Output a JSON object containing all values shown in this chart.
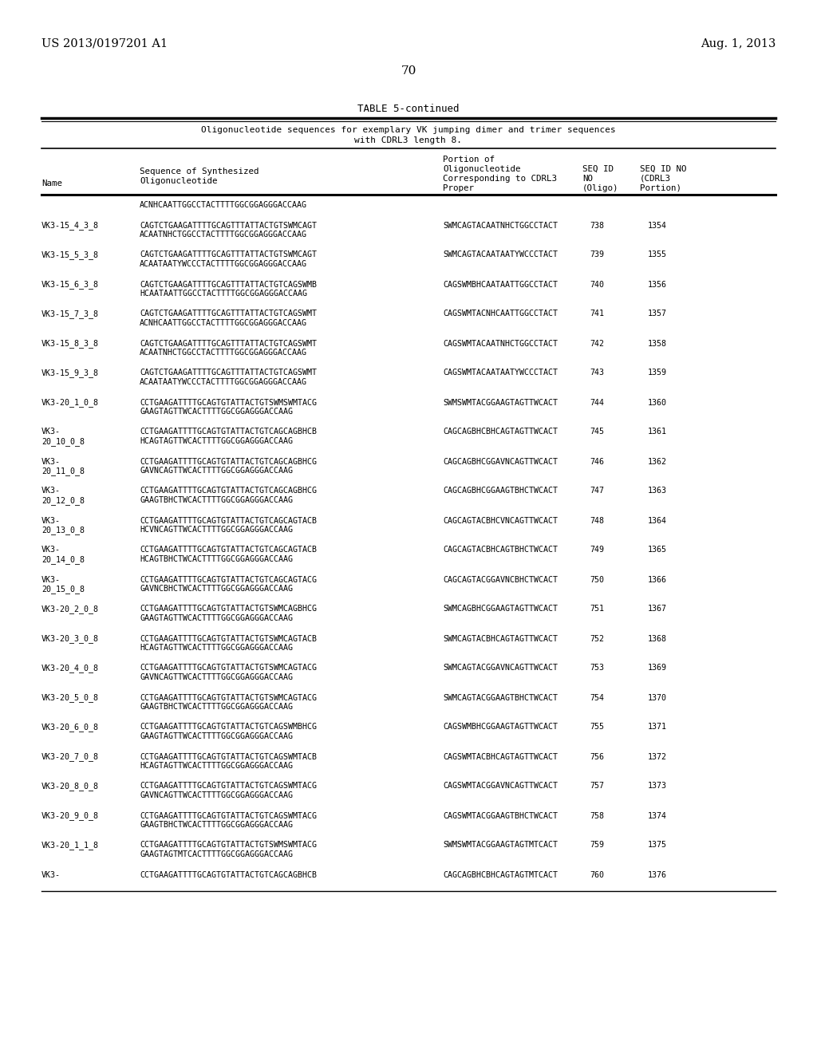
{
  "header_left": "US 2013/0197201 A1",
  "header_right": "Aug. 1, 2013",
  "page_number": "70",
  "table_title": "TABLE 5-continued",
  "table_subtitle1": "Oligonucleotide sequences for exemplary VK jumping dimer and trimer sequences",
  "table_subtitle2": "with CDRL3 length 8.",
  "bg_color": "#ffffff",
  "text_color": "#000000",
  "entries": [
    {
      "name": "",
      "seq1": "ACNHCAATTGGCCTACTTTTGGCGGAGGGACCAAG",
      "seq2": "",
      "portion": "",
      "num1": "",
      "num2": ""
    },
    {
      "name": "VK3-15_4_3_8",
      "seq1": "CAGTCTGAAGATTTTGCAGTTTATTACTGTSWMCAGT",
      "seq2": "ACAATNHCTGGCCTACTTTTGGCGGAGGGACCAAG",
      "portion": "SWMCAGTACAATNHCTGGCCTACT",
      "num1": "738",
      "num2": "1354"
    },
    {
      "name": "VK3-15_5_3_8",
      "seq1": "CAGTCTGAAGATTTTGCAGTTTATTACTGTSWMCAGT",
      "seq2": "ACAATAATYWCCCTACTTTTGGCGGAGGGACCAAG",
      "portion": "SWMCAGTACAATAATYWCCCTACT",
      "num1": "739",
      "num2": "1355"
    },
    {
      "name": "VK3-15_6_3_8",
      "seq1": "CAGTCTGAAGATTTTGCAGTTTATTACTGTCAGSWMB",
      "seq2": "HCAATAATTGGCCTACTTTTGGCGGAGGGACCAAG",
      "portion": "CAGSWMBHCAATAATTGGCCTACT",
      "num1": "740",
      "num2": "1356"
    },
    {
      "name": "VK3-15_7_3_8",
      "seq1": "CAGTCTGAAGATTTTGCAGTTTATTACTGTCAGSWMT",
      "seq2": "ACNHCAATTGGCCTACTTTTGGCGGAGGGACCAAG",
      "portion": "CAGSWMTACNHCAATTGGCCTACT",
      "num1": "741",
      "num2": "1357"
    },
    {
      "name": "VK3-15_8_3_8",
      "seq1": "CAGTCTGAAGATTTTGCAGTTTATTACTGTCAGSWMT",
      "seq2": "ACAATNHCTGGCCTACTTTTGGCGGAGGGACCAAG",
      "portion": "CAGSWMTACAATNHCTGGCCTACT",
      "num1": "742",
      "num2": "1358"
    },
    {
      "name": "VK3-15_9_3_8",
      "seq1": "CAGTCTGAAGATTTTGCAGTTTATTACTGTCAGSWMT",
      "seq2": "ACAATAATYWCCCTACTTTTGGCGGAGGGACCAAG",
      "portion": "CAGSWMTACAATAATYWCCCTACT",
      "num1": "743",
      "num2": "1359"
    },
    {
      "name": "VK3-20_1_0_8",
      "seq1": "CCTGAAGATTTTGCAGTGTATTACTGTSWMSWMTACG",
      "seq2": "GAAGTAGTTWCACTTTTGGCGGAGGGACCAAG",
      "portion": "SWMSWMTACGGAAGTAGTTWCACT",
      "num1": "744",
      "num2": "1360"
    },
    {
      "name": "VK3-\n20_10_0_8",
      "seq1": "CCTGAAGATTTTGCAGTGTATTACTGTCAGCAGBHCB",
      "seq2": "HCAGTAGTTWCACTTTTGGCGGAGGGACCAAG",
      "portion": "CAGCAGBHCBHCAGTAGTTWCACT",
      "num1": "745",
      "num2": "1361"
    },
    {
      "name": "VK3-\n20_11_0_8",
      "seq1": "CCTGAAGATTTTGCAGTGTATTACTGTCAGCAGBHCG",
      "seq2": "GAVNCAGTTWCACTTTTGGCGGAGGGACCAAG",
      "portion": "CAGCAGBHCGGAVNCAGTTWCACT",
      "num1": "746",
      "num2": "1362"
    },
    {
      "name": "VK3-\n20_12_0_8",
      "seq1": "CCTGAAGATTTTGCAGTGTATTACTGTCAGCAGBHCG",
      "seq2": "GAAGTBHCTWCACTTTTGGCGGAGGGACCAAG",
      "portion": "CAGCAGBHCGGAAGTBHCTWCACT",
      "num1": "747",
      "num2": "1363"
    },
    {
      "name": "VK3-\n20_13_0_8",
      "seq1": "CCTGAAGATTTTGCAGTGTATTACTGTCAGCAGTACB",
      "seq2": "HCVNCAGTTWCACTTTTGGCGGAGGGACCAAG",
      "portion": "CAGCAGTACBHCVNCAGTTWCACT",
      "num1": "748",
      "num2": "1364"
    },
    {
      "name": "VK3-\n20_14_0_8",
      "seq1": "CCTGAAGATTTTGCAGTGTATTACTGTCAGCAGTACB",
      "seq2": "HCAGTBHCTWCACTTTTGGCGGAGGGACCAAG",
      "portion": "CAGCAGTACBHCAGTBHCTWCACT",
      "num1": "749",
      "num2": "1365"
    },
    {
      "name": "VK3-\n20_15_0_8",
      "seq1": "CCTGAAGATTTTGCAGTGTATTACTGTCAGCAGTACG",
      "seq2": "GAVNCBHCTWCACTTTTGGCGGAGGGACCAAG",
      "portion": "CAGCAGTACGGAVNCBHCTWCACT",
      "num1": "750",
      "num2": "1366"
    },
    {
      "name": "VK3-20_2_0_8",
      "seq1": "CCTGAAGATTTTGCAGTGTATTACTGTSWMCAGBHCG",
      "seq2": "GAAGTAGTTWCACTTTTGGCGGAGGGACCAAG",
      "portion": "SWMCAGBHCGGAAGTAGTTWCACT",
      "num1": "751",
      "num2": "1367"
    },
    {
      "name": "VK3-20_3_0_8",
      "seq1": "CCTGAAGATTTTGCAGTGTATTACTGTSWMCAGTACB",
      "seq2": "HCAGTAGTTWCACTTTTGGCGGAGGGACCAAG",
      "portion": "SWMCAGTACBHCAGTAGTTWCACT",
      "num1": "752",
      "num2": "1368"
    },
    {
      "name": "VK3-20_4_0_8",
      "seq1": "CCTGAAGATTTTGCAGTGTATTACTGTSWMCAGTACG",
      "seq2": "GAVNCAGTTWCACTTTTGGCGGAGGGACCAAG",
      "portion": "SWMCAGTACGGAVNCAGTTWCACT",
      "num1": "753",
      "num2": "1369"
    },
    {
      "name": "VK3-20_5_0_8",
      "seq1": "CCTGAAGATTTTGCAGTGTATTACTGTSWMCAGTACG",
      "seq2": "GAAGTBHCTWCACTTTTGGCGGAGGGACCAAG",
      "portion": "SWMCAGTACGGAAGTBHCTWCACT",
      "num1": "754",
      "num2": "1370"
    },
    {
      "name": "VK3-20_6_0_8",
      "seq1": "CCTGAAGATTTTGCAGTGTATTACTGTCAGSWMBHCG",
      "seq2": "GAAGTAGTTWCACTTTTGGCGGAGGGACCAAG",
      "portion": "CAGSWMBHCGGAAGTAGTTWCACT",
      "num1": "755",
      "num2": "1371"
    },
    {
      "name": "VK3-20_7_0_8",
      "seq1": "CCTGAAGATTTTGCAGTGTATTACTGTCAGSWMTACB",
      "seq2": "HCAGTAGTTWCACTTTTGGCGGAGGGACCAAG",
      "portion": "CAGSWMTACBHCAGTAGTTWCACT",
      "num1": "756",
      "num2": "1372"
    },
    {
      "name": "VK3-20_8_0_8",
      "seq1": "CCTGAAGATTTTGCAGTGTATTACTGTCAGSWMTACG",
      "seq2": "GAVNCAGTTWCACTTTTGGCGGAGGGACCAAG",
      "portion": "CAGSWMTACGGAVNCAGTTWCACT",
      "num1": "757",
      "num2": "1373"
    },
    {
      "name": "VK3-20_9_0_8",
      "seq1": "CCTGAAGATTTTGCAGTGTATTACTGTCAGSWMTACG",
      "seq2": "GAAGTBHCTWCACTTTTGGCGGAGGGACCAAG",
      "portion": "CAGSWMTACGGAAGTBHCTWCACT",
      "num1": "758",
      "num2": "1374"
    },
    {
      "name": "VK3-20_1_1_8",
      "seq1": "CCTGAAGATTTTGCAGTGTATTACTGTSWMSWMTACG",
      "seq2": "GAAGTAGTMTCACTTTTGGCGGAGGGACCAAG",
      "portion": "SWMSWMTACGGAAGTAGTMTCACT",
      "num1": "759",
      "num2": "1375"
    },
    {
      "name": "VK3-",
      "seq1": "CCTGAAGATTTTGCAGTGTATTACTGTCAGCAGBHCB",
      "seq2": "",
      "portion": "CAGCAGBHCBHCAGTAGTMTCACT",
      "num1": "760",
      "num2": "1376"
    }
  ]
}
